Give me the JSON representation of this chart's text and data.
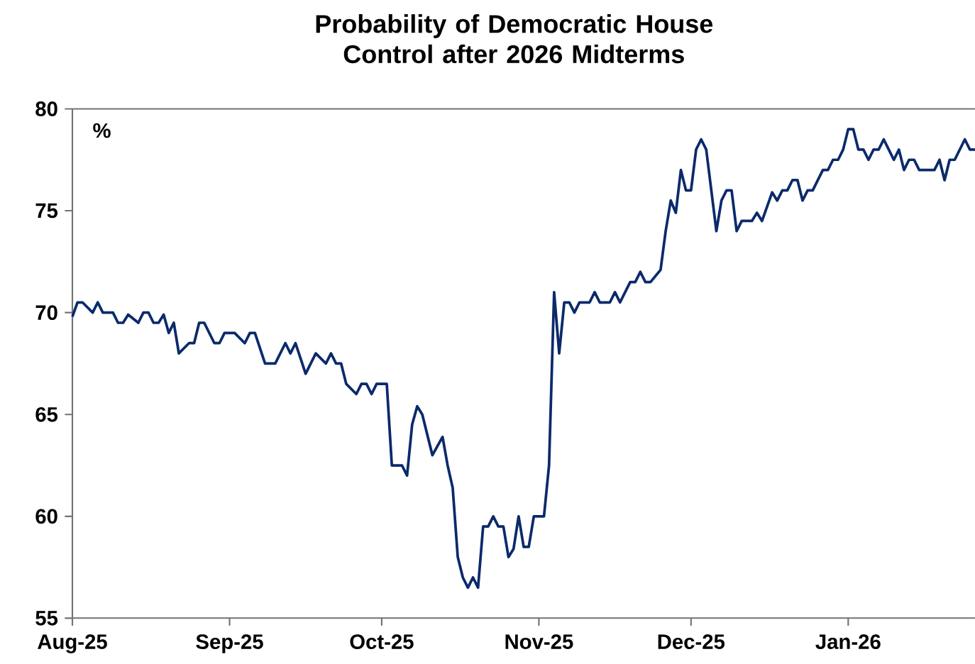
{
  "chart_data": {
    "type": "line",
    "title": "Probability of Democratic House Control after 2026 Midterms",
    "subtitle": "%",
    "x": [
      "2025-08-01",
      "2025-08-02",
      "2025-08-03",
      "2025-08-05",
      "2025-08-06",
      "2025-08-07",
      "2025-08-09",
      "2025-08-10",
      "2025-08-11",
      "2025-08-12",
      "2025-08-14",
      "2025-08-15",
      "2025-08-16",
      "2025-08-17",
      "2025-08-18",
      "2025-08-19",
      "2025-08-20",
      "2025-08-21",
      "2025-08-22",
      "2025-08-24",
      "2025-08-25",
      "2025-08-26",
      "2025-08-27",
      "2025-08-29",
      "2025-08-30",
      "2025-08-31",
      "2025-09-02",
      "2025-09-04",
      "2025-09-05",
      "2025-09-06",
      "2025-09-08",
      "2025-09-10",
      "2025-09-12",
      "2025-09-13",
      "2025-09-14",
      "2025-09-16",
      "2025-09-18",
      "2025-09-20",
      "2025-09-21",
      "2025-09-22",
      "2025-09-23",
      "2025-09-24",
      "2025-09-26",
      "2025-09-27",
      "2025-09-28",
      "2025-09-29",
      "2025-09-30",
      "2025-10-02",
      "2025-10-03",
      "2025-10-05",
      "2025-10-06",
      "2025-10-07",
      "2025-10-08",
      "2025-10-09",
      "2025-10-11",
      "2025-10-13",
      "2025-10-14",
      "2025-10-15",
      "2025-10-16",
      "2025-10-17",
      "2025-10-18",
      "2025-10-19",
      "2025-10-20",
      "2025-10-21",
      "2025-10-22",
      "2025-10-23",
      "2025-10-24",
      "2025-10-25",
      "2025-10-26",
      "2025-10-27",
      "2025-10-28",
      "2025-10-29",
      "2025-10-30",
      "2025-10-31",
      "2025-11-02",
      "2025-11-03",
      "2025-11-04",
      "2025-11-05",
      "2025-11-06",
      "2025-11-07",
      "2025-11-08",
      "2025-11-09",
      "2025-11-11",
      "2025-11-12",
      "2025-11-13",
      "2025-11-15",
      "2025-11-16",
      "2025-11-17",
      "2025-11-19",
      "2025-11-20",
      "2025-11-21",
      "2025-11-22",
      "2025-11-23",
      "2025-11-25",
      "2025-11-26",
      "2025-11-27",
      "2025-11-28",
      "2025-11-29",
      "2025-11-30",
      "2025-12-01",
      "2025-12-02",
      "2025-12-03",
      "2025-12-04",
      "2025-12-06",
      "2025-12-07",
      "2025-12-08",
      "2025-12-09",
      "2025-12-10",
      "2025-12-11",
      "2025-12-13",
      "2025-12-14",
      "2025-12-15",
      "2025-12-17",
      "2025-12-18",
      "2025-12-19",
      "2025-12-20",
      "2025-12-21",
      "2025-12-22",
      "2025-12-23",
      "2025-12-24",
      "2025-12-25",
      "2025-12-27",
      "2025-12-28",
      "2025-12-29",
      "2025-12-30",
      "2025-12-31",
      "2026-01-01",
      "2026-01-02",
      "2026-01-03",
      "2026-01-04",
      "2026-01-05",
      "2026-01-06",
      "2026-01-07",
      "2026-01-08",
      "2026-01-09",
      "2026-01-10",
      "2026-01-11",
      "2026-01-12",
      "2026-01-13",
      "2026-01-14",
      "2026-01-15",
      "2026-01-18",
      "2026-01-19",
      "2026-01-20",
      "2026-01-21",
      "2026-01-22",
      "2026-01-24",
      "2026-01-25",
      "2026-01-26"
    ],
    "series": [
      {
        "color": "#0b2a6b",
        "values": [
          69.8,
          70.5,
          70.5,
          70,
          70.5,
          70,
          70,
          69.5,
          69.5,
          69.9,
          69.5,
          70,
          70,
          69.5,
          69.5,
          69.9,
          69,
          69.5,
          68,
          68.5,
          68.5,
          69.5,
          69.5,
          68.5,
          68.5,
          69,
          69,
          68.5,
          69,
          69,
          67.5,
          67.5,
          68.5,
          68,
          68.5,
          67,
          68,
          67.5,
          68,
          67.5,
          67.5,
          66.5,
          66,
          66.5,
          66.5,
          66,
          66.5,
          66.5,
          62.5,
          62.5,
          62,
          64.5,
          65.4,
          65,
          63,
          63.9,
          62.5,
          61.4,
          58,
          57,
          56.5,
          57,
          56.5,
          59.5,
          59.5,
          60,
          59.5,
          59.5,
          58,
          58.4,
          60,
          58.5,
          58.5,
          60,
          60,
          62.5,
          71,
          68,
          70.5,
          70.5,
          70,
          70.5,
          70.5,
          71,
          70.5,
          70.5,
          71,
          70.5,
          71.5,
          71.5,
          72,
          71.5,
          71.5,
          72.1,
          74,
          75.5,
          74.9,
          77,
          76,
          76,
          78,
          78.5,
          78,
          74,
          75.5,
          76,
          76,
          74,
          74.5,
          74.5,
          74.9,
          74.5,
          75.9,
          75.5,
          76,
          76,
          76.5,
          76.5,
          75.5,
          76,
          76,
          77,
          77,
          77.5,
          77.5,
          78,
          79,
          79,
          78,
          78,
          77.5,
          78,
          78,
          78.5,
          78,
          77.5,
          78,
          77,
          77.5,
          77.5,
          77,
          77,
          77.5,
          76.5,
          77.5,
          77.5,
          78.5,
          78,
          78
        ]
      }
    ],
    "xlim": [
      "2025-08-01",
      "2026-01-26"
    ],
    "ylim": [
      55,
      80
    ],
    "xticks": [
      {
        "value": "2025-08-01",
        "label": "Aug-25"
      },
      {
        "value": "2025-09-01",
        "label": "Sep-25"
      },
      {
        "value": "2025-10-01",
        "label": "Oct-25"
      },
      {
        "value": "2025-11-01",
        "label": "Nov-25"
      },
      {
        "value": "2025-12-01",
        "label": "Dec-25"
      },
      {
        "value": "2026-01-01",
        "label": "Jan-26"
      }
    ],
    "yticks": [
      55,
      60,
      65,
      70,
      75,
      80
    ]
  }
}
